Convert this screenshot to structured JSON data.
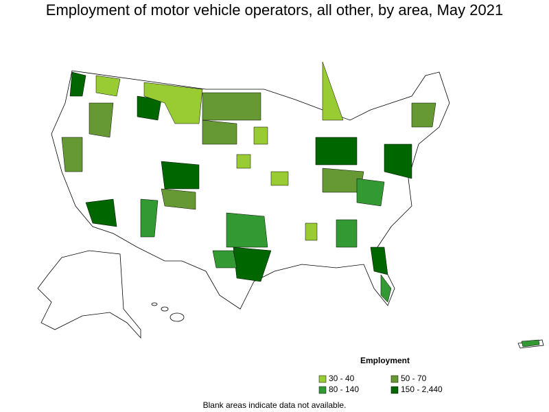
{
  "title": "Employment of motor vehicle operators, all other, by area, May 2021",
  "legend": {
    "title": "Employment",
    "items": [
      {
        "label": "30 - 40",
        "color": "#99cc33"
      },
      {
        "label": "50 - 70",
        "color": "#669933"
      },
      {
        "label": "80 - 140",
        "color": "#339933"
      },
      {
        "label": "150 - 2,440",
        "color": "#006600"
      }
    ]
  },
  "note": "Blank areas indicate data not available."
}
